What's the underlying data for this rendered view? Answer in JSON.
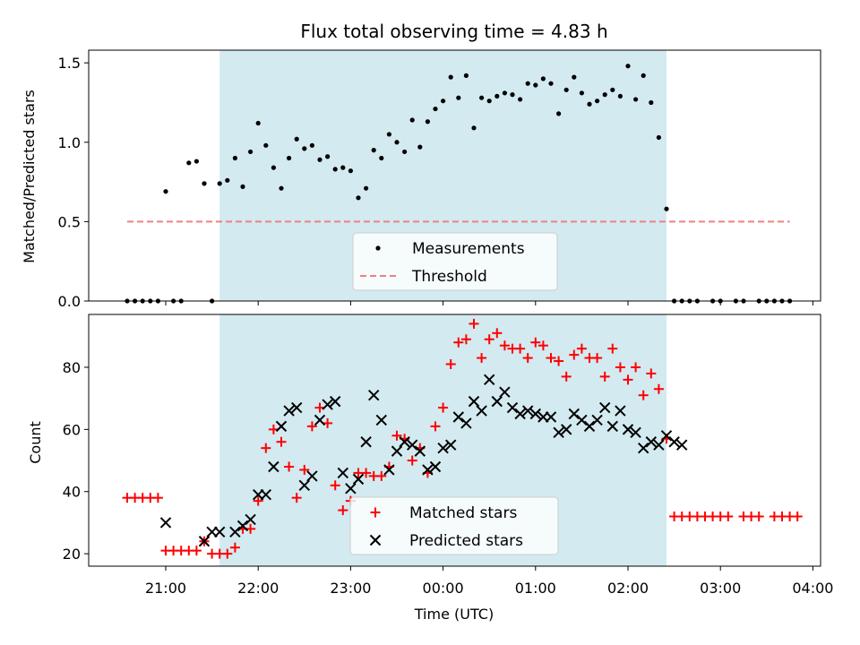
{
  "chart_data": [
    {
      "type": "scatter",
      "title": "Flux total observing time = 4.83 h",
      "xlabel": "",
      "ylabel": "Matched/Predicted stars",
      "ylim": [
        0,
        1.58
      ],
      "yticks": [
        0.0,
        0.5,
        1.0,
        1.5
      ],
      "ytick_labels": [
        "0.0",
        "0.5",
        "1.0",
        "1.5"
      ],
      "grid": false,
      "legend_position": "lower-center",
      "observing_window": {
        "start": "21:35",
        "end": "02:25",
        "color": "#d3eaf0"
      },
      "threshold": {
        "name": "Threshold",
        "value": 0.5,
        "x_start": "20:35",
        "x_end": "03:45",
        "color": "#f08080",
        "style": "dashed"
      },
      "series": [
        {
          "name": "Measurements",
          "color": "#000000",
          "marker": "dot",
          "points": [
            [
              "20:35",
              0
            ],
            [
              "20:40",
              0
            ],
            [
              "20:45",
              0
            ],
            [
              "20:50",
              0
            ],
            [
              "20:55",
              0
            ],
            [
              "21:05",
              0
            ],
            [
              "21:10",
              0
            ],
            [
              "21:30",
              0
            ],
            [
              "21:00",
              0.69
            ],
            [
              "21:15",
              0.87
            ],
            [
              "21:20",
              0.88
            ],
            [
              "21:25",
              0.74
            ],
            [
              "21:35",
              0.74
            ],
            [
              "21:40",
              0.76
            ],
            [
              "21:45",
              0.9
            ],
            [
              "21:50",
              0.72
            ],
            [
              "21:55",
              0.94
            ],
            [
              "22:00",
              1.12
            ],
            [
              "22:05",
              0.98
            ],
            [
              "22:10",
              0.84
            ],
            [
              "22:15",
              0.71
            ],
            [
              "22:20",
              0.9
            ],
            [
              "22:25",
              1.02
            ],
            [
              "22:30",
              0.96
            ],
            [
              "22:35",
              0.98
            ],
            [
              "22:40",
              0.89
            ],
            [
              "22:45",
              0.91
            ],
            [
              "22:50",
              0.83
            ],
            [
              "22:55",
              0.84
            ],
            [
              "23:00",
              0.82
            ],
            [
              "23:05",
              0.65
            ],
            [
              "23:10",
              0.71
            ],
            [
              "23:15",
              0.95
            ],
            [
              "23:20",
              0.9
            ],
            [
              "23:25",
              1.05
            ],
            [
              "23:30",
              1.0
            ],
            [
              "23:35",
              0.94
            ],
            [
              "23:40",
              1.14
            ],
            [
              "23:45",
              0.97
            ],
            [
              "23:50",
              1.13
            ],
            [
              "23:55",
              1.21
            ],
            [
              "00:00",
              1.26
            ],
            [
              "00:05",
              1.41
            ],
            [
              "00:10",
              1.28
            ],
            [
              "00:15",
              1.42
            ],
            [
              "00:20",
              1.09
            ],
            [
              "00:25",
              1.28
            ],
            [
              "00:30",
              1.26
            ],
            [
              "00:35",
              1.29
            ],
            [
              "00:40",
              1.31
            ],
            [
              "00:45",
              1.3
            ],
            [
              "00:50",
              1.27
            ],
            [
              "00:55",
              1.37
            ],
            [
              "01:00",
              1.36
            ],
            [
              "01:05",
              1.4
            ],
            [
              "01:10",
              1.37
            ],
            [
              "01:15",
              1.18
            ],
            [
              "01:20",
              1.33
            ],
            [
              "01:25",
              1.41
            ],
            [
              "01:30",
              1.31
            ],
            [
              "01:35",
              1.24
            ],
            [
              "01:40",
              1.26
            ],
            [
              "01:45",
              1.3
            ],
            [
              "01:50",
              1.33
            ],
            [
              "01:55",
              1.29
            ],
            [
              "02:00",
              1.48
            ],
            [
              "02:05",
              1.27
            ],
            [
              "02:10",
              1.42
            ],
            [
              "02:15",
              1.25
            ],
            [
              "02:20",
              1.03
            ],
            [
              "02:25",
              0.58
            ],
            [
              "02:30",
              0
            ],
            [
              "02:35",
              0
            ],
            [
              "02:40",
              0
            ],
            [
              "02:45",
              0
            ],
            [
              "02:55",
              0
            ],
            [
              "03:00",
              0
            ],
            [
              "03:10",
              0
            ],
            [
              "03:15",
              0
            ],
            [
              "03:25",
              0
            ],
            [
              "03:30",
              0
            ],
            [
              "03:35",
              0
            ],
            [
              "03:40",
              0
            ],
            [
              "03:45",
              0
            ]
          ]
        }
      ]
    },
    {
      "type": "scatter",
      "title": "",
      "xlabel": "Time (UTC)",
      "ylabel": "Count",
      "ylim": [
        16,
        97
      ],
      "yticks": [
        20,
        40,
        60,
        80
      ],
      "ytick_labels": [
        "20",
        "40",
        "60",
        "80"
      ],
      "xlim": [
        "20:10",
        "04:05"
      ],
      "xticks": [
        "21:00",
        "22:00",
        "23:00",
        "00:00",
        "01:00",
        "02:00",
        "03:00",
        "04:00"
      ],
      "grid": false,
      "legend_position": "lower-center",
      "series": [
        {
          "name": "Matched stars",
          "color": "#ff0000",
          "marker": "plus",
          "points": [
            [
              "20:35",
              38
            ],
            [
              "20:40",
              38
            ],
            [
              "20:45",
              38
            ],
            [
              "20:50",
              38
            ],
            [
              "20:55",
              38
            ],
            [
              "21:00",
              21
            ],
            [
              "21:05",
              21
            ],
            [
              "21:10",
              21
            ],
            [
              "21:15",
              21
            ],
            [
              "21:20",
              21
            ],
            [
              "21:25",
              24
            ],
            [
              "21:30",
              20
            ],
            [
              "21:35",
              20
            ],
            [
              "21:40",
              20
            ],
            [
              "21:45",
              22
            ],
            [
              "21:50",
              28
            ],
            [
              "21:55",
              28
            ],
            [
              "22:00",
              37
            ],
            [
              "22:05",
              54
            ],
            [
              "22:10",
              60
            ],
            [
              "22:15",
              56
            ],
            [
              "22:20",
              48
            ],
            [
              "22:25",
              38
            ],
            [
              "22:30",
              47
            ],
            [
              "22:35",
              61
            ],
            [
              "22:40",
              67
            ],
            [
              "22:45",
              62
            ],
            [
              "22:50",
              42
            ],
            [
              "22:55",
              34
            ],
            [
              "23:00",
              37
            ],
            [
              "23:05",
              46
            ],
            [
              "23:10",
              46
            ],
            [
              "23:15",
              45
            ],
            [
              "23:20",
              45
            ],
            [
              "23:25",
              48
            ],
            [
              "23:30",
              58
            ],
            [
              "23:35",
              57
            ],
            [
              "23:40",
              50
            ],
            [
              "23:45",
              54
            ],
            [
              "23:50",
              46
            ],
            [
              "23:55",
              61
            ],
            [
              "00:00",
              67
            ],
            [
              "00:05",
              81
            ],
            [
              "00:10",
              88
            ],
            [
              "00:15",
              89
            ],
            [
              "00:20",
              94
            ],
            [
              "00:25",
              83
            ],
            [
              "00:30",
              89
            ],
            [
              "00:35",
              91
            ],
            [
              "00:40",
              87
            ],
            [
              "00:45",
              86
            ],
            [
              "00:50",
              86
            ],
            [
              "00:55",
              83
            ],
            [
              "01:00",
              88
            ],
            [
              "01:05",
              87
            ],
            [
              "01:10",
              83
            ],
            [
              "01:15",
              82
            ],
            [
              "01:20",
              77
            ],
            [
              "01:25",
              84
            ],
            [
              "01:30",
              86
            ],
            [
              "01:35",
              83
            ],
            [
              "01:40",
              83
            ],
            [
              "01:45",
              77
            ],
            [
              "01:50",
              86
            ],
            [
              "01:55",
              80
            ],
            [
              "02:00",
              76
            ],
            [
              "02:05",
              80
            ],
            [
              "02:10",
              71
            ],
            [
              "02:15",
              78
            ],
            [
              "02:20",
              73
            ],
            [
              "02:25",
              57
            ],
            [
              "02:30",
              32
            ],
            [
              "02:35",
              32
            ],
            [
              "02:40",
              32
            ],
            [
              "02:45",
              32
            ],
            [
              "02:50",
              32
            ],
            [
              "02:55",
              32
            ],
            [
              "03:00",
              32
            ],
            [
              "03:05",
              32
            ],
            [
              "03:15",
              32
            ],
            [
              "03:20",
              32
            ],
            [
              "03:25",
              32
            ],
            [
              "03:35",
              32
            ],
            [
              "03:40",
              32
            ],
            [
              "03:45",
              32
            ],
            [
              "03:50",
              32
            ]
          ]
        },
        {
          "name": "Predicted stars",
          "color": "#000000",
          "marker": "cross",
          "points": [
            [
              "21:00",
              30
            ],
            [
              "21:25",
              24
            ],
            [
              "21:30",
              27
            ],
            [
              "21:35",
              27
            ],
            [
              "21:45",
              27
            ],
            [
              "21:50",
              29
            ],
            [
              "21:55",
              31
            ],
            [
              "22:00",
              39
            ],
            [
              "22:05",
              39
            ],
            [
              "22:10",
              48
            ],
            [
              "22:15",
              61
            ],
            [
              "22:20",
              66
            ],
            [
              "22:25",
              67
            ],
            [
              "22:30",
              42
            ],
            [
              "22:35",
              45
            ],
            [
              "22:40",
              63
            ],
            [
              "22:45",
              68
            ],
            [
              "22:50",
              69
            ],
            [
              "22:55",
              46
            ],
            [
              "23:00",
              41
            ],
            [
              "23:05",
              44
            ],
            [
              "23:10",
              56
            ],
            [
              "23:15",
              71
            ],
            [
              "23:20",
              63
            ],
            [
              "23:25",
              47
            ],
            [
              "23:30",
              53
            ],
            [
              "23:35",
              56
            ],
            [
              "23:40",
              55
            ],
            [
              "23:45",
              53
            ],
            [
              "23:50",
              47
            ],
            [
              "23:55",
              48
            ],
            [
              "00:00",
              54
            ],
            [
              "00:05",
              55
            ],
            [
              "00:10",
              64
            ],
            [
              "00:15",
              62
            ],
            [
              "00:20",
              69
            ],
            [
              "00:25",
              66
            ],
            [
              "00:30",
              76
            ],
            [
              "00:35",
              69
            ],
            [
              "00:40",
              72
            ],
            [
              "00:45",
              67
            ],
            [
              "00:50",
              65
            ],
            [
              "00:55",
              66
            ],
            [
              "01:00",
              65
            ],
            [
              "01:05",
              64
            ],
            [
              "01:10",
              64
            ],
            [
              "01:15",
              59
            ],
            [
              "01:20",
              60
            ],
            [
              "01:25",
              65
            ],
            [
              "01:30",
              63
            ],
            [
              "01:35",
              61
            ],
            [
              "01:40",
              63
            ],
            [
              "01:45",
              67
            ],
            [
              "01:50",
              61
            ],
            [
              "01:55",
              66
            ],
            [
              "02:00",
              60
            ],
            [
              "02:05",
              59
            ],
            [
              "02:10",
              54
            ],
            [
              "02:15",
              56
            ],
            [
              "02:20",
              55
            ],
            [
              "02:25",
              58
            ],
            [
              "02:30",
              56
            ],
            [
              "02:35",
              55
            ]
          ]
        }
      ]
    }
  ]
}
